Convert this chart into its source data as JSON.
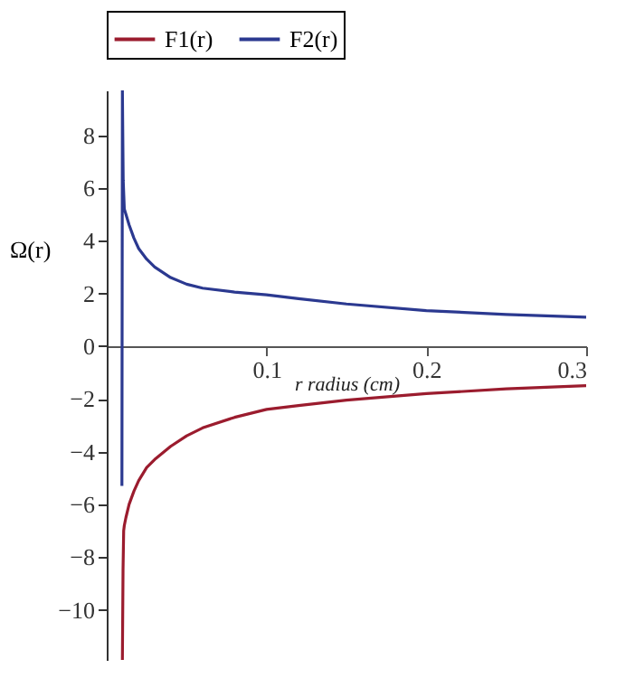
{
  "chart_data": {
    "type": "line",
    "xlabel": "r radius (cm)",
    "ylabel": "Ω(r)",
    "xlim": [
      0,
      0.3
    ],
    "ylim": [
      -11.9,
      9.7
    ],
    "xticks": [
      0.1,
      0.2,
      0.3
    ],
    "yticks": [
      -10,
      -8,
      -6,
      -4,
      -2,
      0,
      2,
      4,
      6,
      8
    ],
    "grid": false,
    "legend": "top",
    "marker": "none",
    "line_style": "solid",
    "series": [
      {
        "name": "F1(r)",
        "color": "#9b1c2e",
        "x": [
          0.0098,
          0.0102,
          0.0106,
          0.011,
          0.012,
          0.014,
          0.017,
          0.02,
          0.025,
          0.03,
          0.04,
          0.05,
          0.06,
          0.08,
          0.1,
          0.12,
          0.15,
          0.2,
          0.25,
          0.3
        ],
        "values": [
          -11.9,
          -8.5,
          -7.0,
          -6.8,
          -6.5,
          -6.0,
          -5.5,
          -5.1,
          -4.6,
          -4.3,
          -3.8,
          -3.4,
          -3.1,
          -2.7,
          -2.4,
          -2.25,
          -2.05,
          -1.8,
          -1.62,
          -1.5
        ]
      },
      {
        "name": "F2(r)",
        "color": "#2b3990",
        "x": [
          0.0095,
          0.0098,
          0.0103,
          0.011,
          0.012,
          0.014,
          0.017,
          0.02,
          0.025,
          0.03,
          0.04,
          0.05,
          0.06,
          0.08,
          0.1,
          0.12,
          0.15,
          0.2,
          0.25,
          0.3
        ],
        "values": [
          -5.3,
          9.7,
          6.3,
          5.2,
          5.0,
          4.6,
          4.1,
          3.7,
          3.3,
          3.0,
          2.6,
          2.35,
          2.2,
          2.05,
          1.95,
          1.8,
          1.6,
          1.35,
          1.2,
          1.1
        ]
      }
    ]
  }
}
